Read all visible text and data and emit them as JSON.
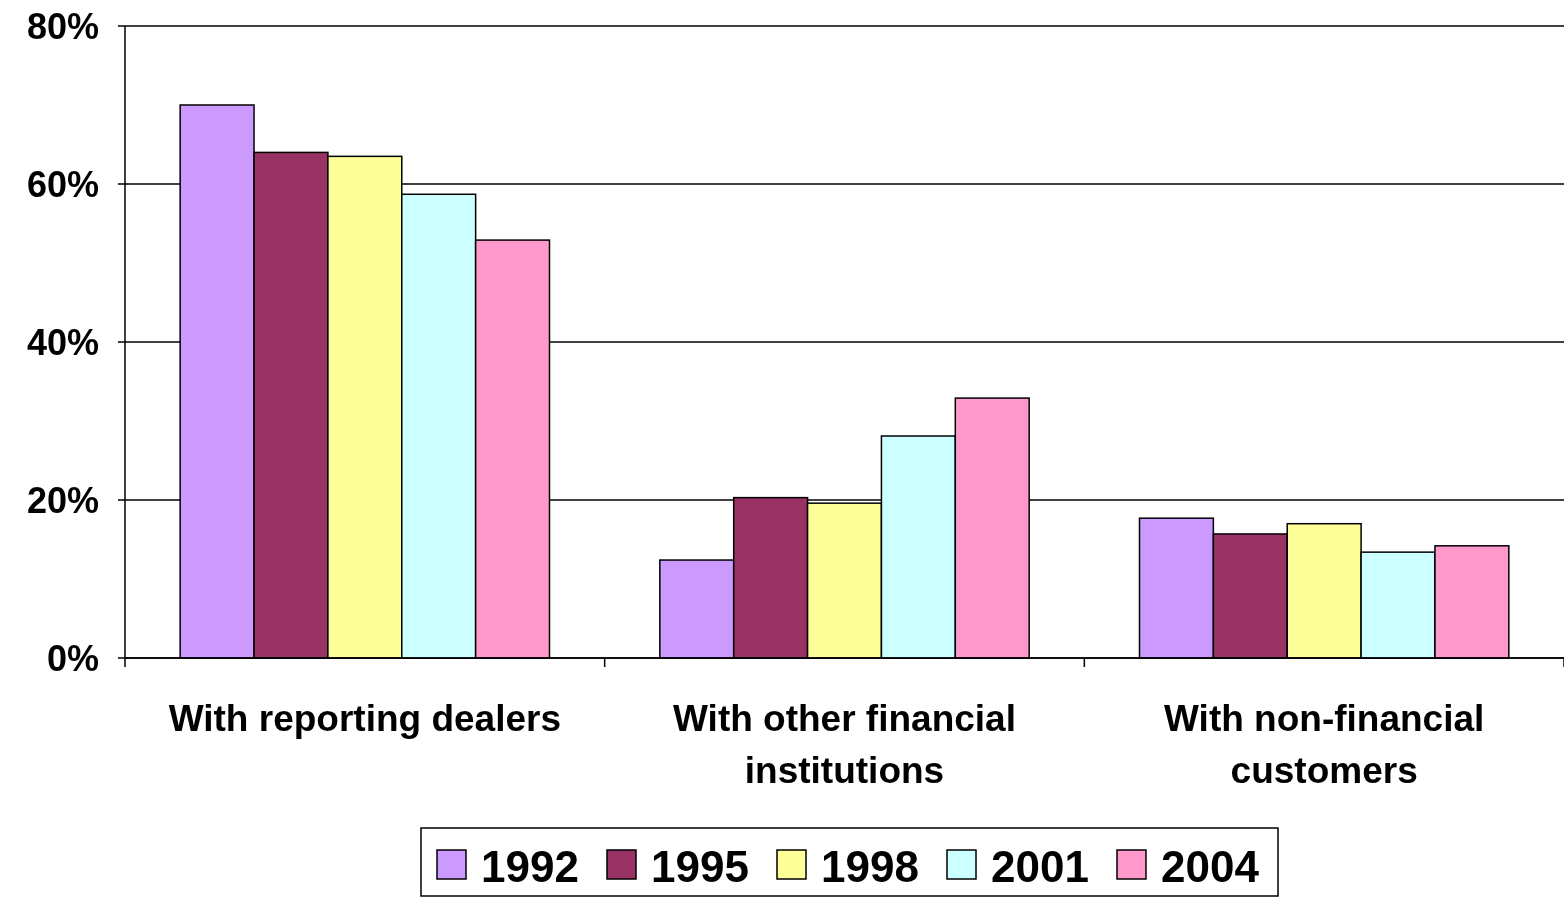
{
  "chart_data": {
    "type": "bar",
    "categories": [
      "With reporting dealers",
      "With other financial institutions",
      "With non-financial customers"
    ],
    "series": [
      {
        "name": "1992",
        "color": "#cc99ff",
        "values": [
          70,
          12.4,
          17.7
        ]
      },
      {
        "name": "1995",
        "color": "#993366",
        "values": [
          64,
          20.3,
          15.7
        ]
      },
      {
        "name": "1998",
        "color": "#ffff99",
        "values": [
          63.5,
          19.6,
          17
        ]
      },
      {
        "name": "2001",
        "color": "#ccffff",
        "values": [
          58.7,
          28.1,
          13.4
        ]
      },
      {
        "name": "2004",
        "color": "#ff99cc",
        "values": [
          52.9,
          32.9,
          14.2
        ]
      }
    ],
    "ylim": [
      0,
      80
    ],
    "yticks": [
      {
        "value": 0,
        "label": "0%"
      },
      {
        "value": 20,
        "label": "20%"
      },
      {
        "value": 40,
        "label": "40%"
      },
      {
        "value": 60,
        "label": "60%"
      },
      {
        "value": 80,
        "label": "80%"
      }
    ],
    "grid": "y",
    "legend": "bottom"
  }
}
